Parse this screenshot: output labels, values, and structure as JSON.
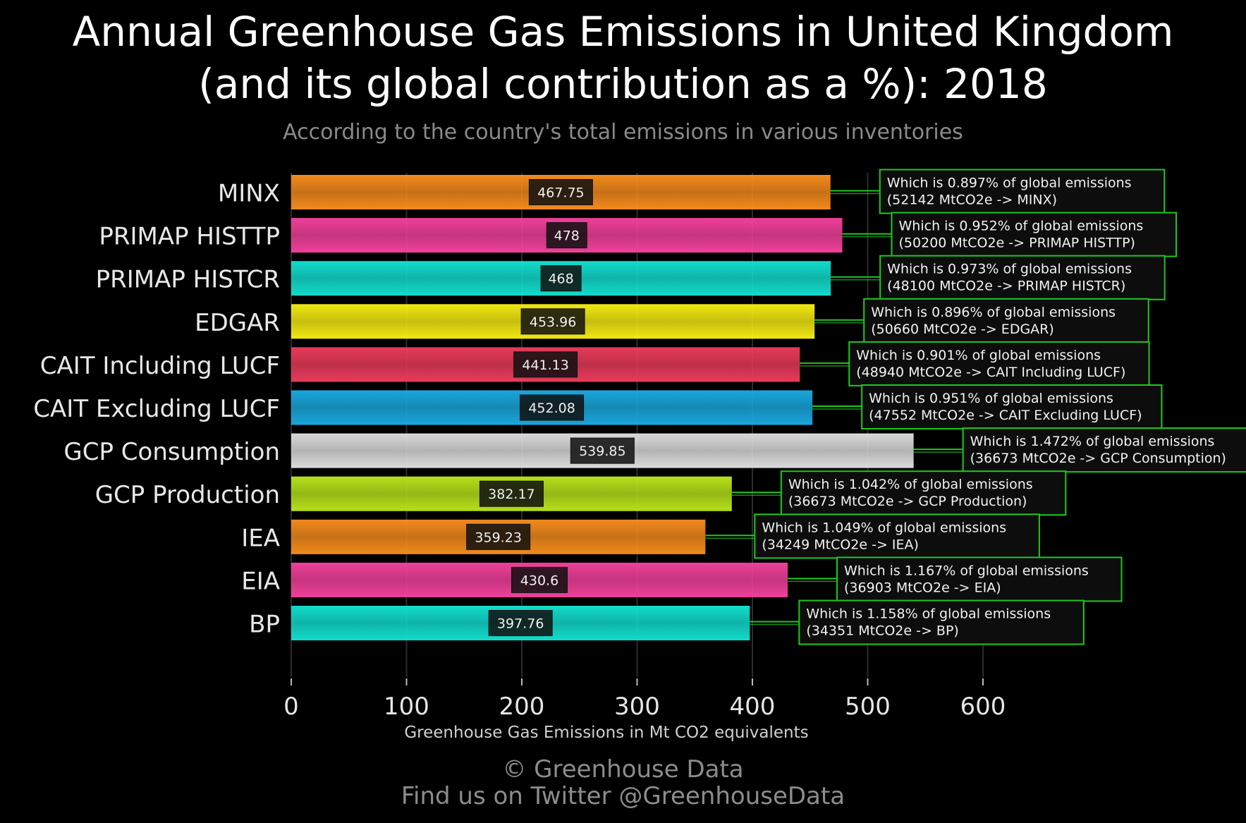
{
  "chart_data": {
    "type": "bar",
    "orientation": "horizontal",
    "title_line1": "Annual Greenhouse Gas Emissions in United Kingdom",
    "title_line2": "(and its global contribution as a %): 2018",
    "subtitle": "According to the country's total emissions in various inventories",
    "xlabel": "Greenhouse Gas Emissions in Mt CO2 equivalents",
    "ylabel": "",
    "xlim": [
      0,
      600
    ],
    "xticks": [
      0,
      100,
      200,
      300,
      400,
      500,
      600
    ],
    "grid": true,
    "categories": [
      "MINX",
      "PRIMAP HISTTP",
      "PRIMAP HISTCR",
      "EDGAR",
      "CAIT Including LUCF",
      "CAIT Excluding LUCF",
      "GCP Consumption",
      "GCP Production",
      "IEA",
      "EIA",
      "BP"
    ],
    "values": [
      467.75,
      478,
      468,
      453.96,
      441.13,
      452.08,
      539.85,
      382.17,
      359.23,
      430.6,
      397.76
    ],
    "value_labels": [
      "467.75",
      "478",
      "468",
      "453.96",
      "441.13",
      "452.08",
      "539.85",
      "382.17",
      "359.23",
      "430.6",
      "397.76"
    ],
    "colors": [
      "#f28a1c",
      "#f0409a",
      "#12dccc",
      "#f2e812",
      "#e83a5a",
      "#1aa6dc",
      "#dadada",
      "#b6e01a",
      "#f28a1c",
      "#f0409a",
      "#12dccc"
    ],
    "annotations": [
      [
        "Which is 0.897% of global emissions",
        "(52142 MtCO2e -> MINX)"
      ],
      [
        "Which is 0.952% of global emissions",
        "(50200 MtCO2e -> PRIMAP HISTTP)"
      ],
      [
        "Which is 0.973% of global emissions",
        "(48100 MtCO2e -> PRIMAP HISTCR)"
      ],
      [
        "Which is 0.896% of global emissions",
        "(50660 MtCO2e -> EDGAR)"
      ],
      [
        "Which is 0.901% of global emissions",
        "(48940 MtCO2e -> CAIT Including LUCF)"
      ],
      [
        "Which is 0.951% of global emissions",
        "(47552 MtCO2e -> CAIT Excluding LUCF)"
      ],
      [
        "Which is 1.472% of global emissions",
        "(36673 MtCO2e -> GCP Consumption)"
      ],
      [
        "Which is 1.042% of global emissions",
        "(36673 MtCO2e -> GCP Production)"
      ],
      [
        "Which is 1.049% of global emissions",
        "(34249 MtCO2e -> IEA)"
      ],
      [
        "Which is 1.167% of global emissions",
        "(36903 MtCO2e -> EIA)"
      ],
      [
        "Which is 1.158% of global emissions",
        "(34351 MtCO2e -> BP)"
      ]
    ],
    "annotation_border_color": "#1ec81e"
  },
  "footer": {
    "line1": "© Greenhouse Data",
    "line2": "Find us on Twitter @GreenhouseData"
  }
}
